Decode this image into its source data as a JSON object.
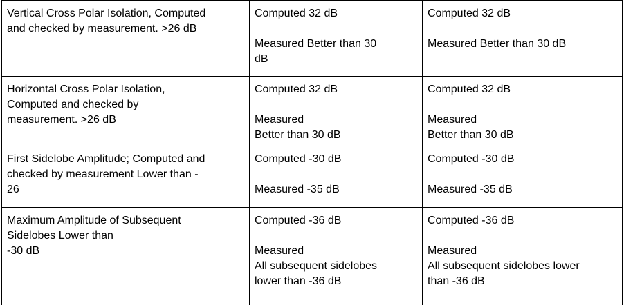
{
  "rows": [
    {
      "parameter": "Vertical Cross Polar Isolation, Computed\nand checked by measurement.  >26 dB",
      "col2": "Computed   32 dB\n\nMeasured    Better than 30\ndB",
      "col3": "Computed  32 dB\n\nMeasured   Better than 30 dB"
    },
    {
      "parameter": "Horizontal Cross Polar Isolation,\nComputed and checked by\nmeasurement.  >26 dB",
      "col2": "Computed   32 dB\n\nMeasured\nBetter than 30 dB",
      "col3": "Computed   32 dB\n\nMeasured\nBetter than 30 dB"
    },
    {
      "parameter": "First Sidelobe Amplitude; Computed and\nchecked by measurement Lower than -\n26",
      "col2": "Computed   -30 dB\n\nMeasured    -35 dB",
      "col3": "Computed              -30 dB\n\nMeasured               -35 dB"
    },
    {
      "parameter": "Maximum Amplitude of Subsequent\nSidelobes Lower than\n-30 dB",
      "col2": "Computed   -36 dB\n\nMeasured\n All subsequent sidelobes\nlower than -36 dB",
      "col3": "Computed   -36 dB\n\nMeasured\nAll subsequent sidelobes lower\nthan -36 dB"
    }
  ]
}
